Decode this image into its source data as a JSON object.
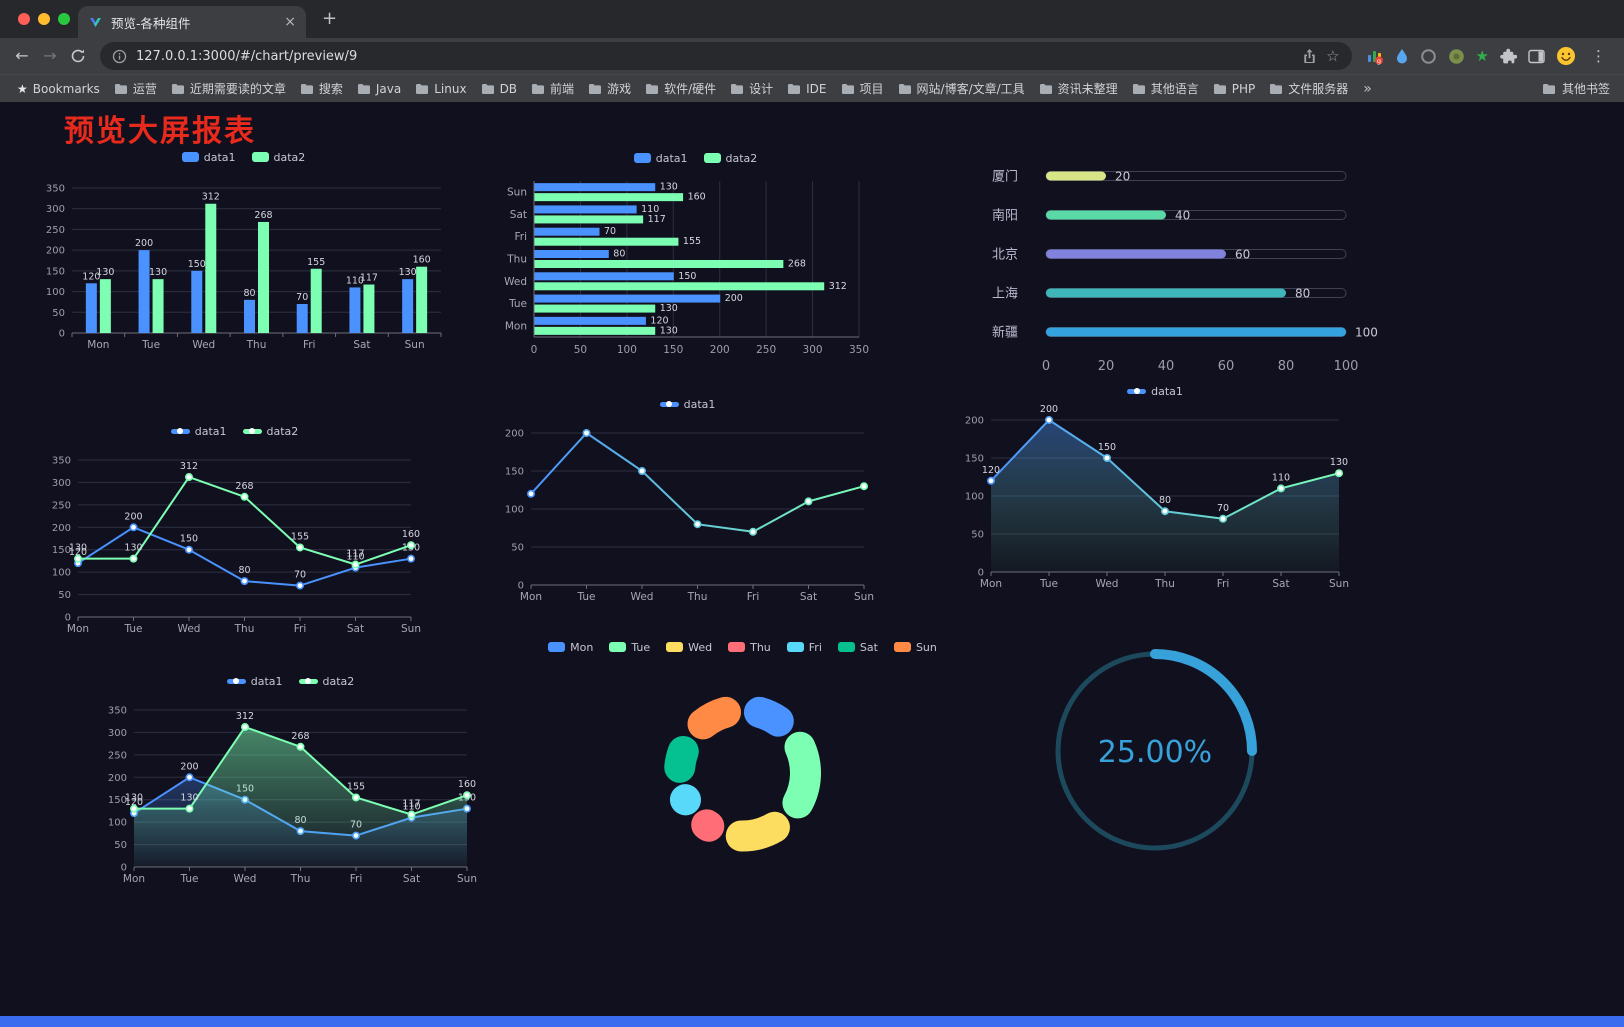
{
  "browser": {
    "tab": {
      "title": "预览-各种组件"
    },
    "url": "127.0.0.1:3000/#/chart/preview/9",
    "icons": {
      "back": "←",
      "forward": "→",
      "menu": "⋮",
      "star": "☆",
      "close": "×",
      "new_tab": "+",
      "overflow": "»",
      "bookmarks_star": "★"
    },
    "bookmarks": [
      "Bookmarks",
      "运营",
      "近期需要读的文章",
      "搜索",
      "Java",
      "Linux",
      "DB",
      "前端",
      "游戏",
      "软件/硬件",
      "设计",
      "IDE",
      "项目",
      "网站/博客/文章/工具",
      "资讯未整理",
      "其他语言",
      "PHP",
      "文件服务器"
    ],
    "other_bookmarks": "其他书签"
  },
  "page": {
    "title": "预览大屏报表",
    "title_color": "#e82a1d",
    "background": "#11101f",
    "footer_color": "#3a6cf0"
  },
  "chart_data": [
    {
      "id": "bar-grouped",
      "type": "bar",
      "legend_style": "rect",
      "categories": [
        "Mon",
        "Tue",
        "Wed",
        "Thu",
        "Fri",
        "Sat",
        "Sun"
      ],
      "series": [
        {
          "name": "data1",
          "color": "#4992ff",
          "values": [
            120,
            200,
            150,
            80,
            70,
            110,
            130
          ]
        },
        {
          "name": "data2",
          "color": "#7cffb2",
          "values": [
            130,
            130,
            312,
            268,
            155,
            117,
            160
          ]
        }
      ],
      "ylim": [
        0,
        350
      ],
      "ytick": 50,
      "show_labels": true
    },
    {
      "id": "bar-horizontal",
      "type": "hbar",
      "legend_style": "rect",
      "categories": [
        "Mon",
        "Tue",
        "Wed",
        "Thu",
        "Fri",
        "Sat",
        "Sun"
      ],
      "series": [
        {
          "name": "data1",
          "color": "#4992ff",
          "values": [
            120,
            200,
            150,
            80,
            70,
            110,
            130
          ]
        },
        {
          "name": "data2",
          "color": "#7cffb2",
          "values": [
            130,
            130,
            312,
            268,
            155,
            117,
            160
          ]
        }
      ],
      "xlim": [
        0,
        350
      ],
      "xtick": 50,
      "show_labels": true
    },
    {
      "id": "progress",
      "type": "progress",
      "rows": [
        {
          "label": "厦门",
          "value": 20,
          "color": "#d7e487"
        },
        {
          "label": "南阳",
          "value": 40,
          "color": "#5ad8a6"
        },
        {
          "label": "北京",
          "value": 60,
          "color": "#8082de"
        },
        {
          "label": "上海",
          "value": 80,
          "color": "#3fb6ba"
        },
        {
          "label": "新疆",
          "value": 100,
          "color": "#35a2e0"
        }
      ],
      "xlim": [
        0,
        100
      ],
      "xticks": [
        0,
        20,
        40,
        60,
        80,
        100
      ]
    },
    {
      "id": "line-two",
      "type": "line",
      "legend_style": "line",
      "categories": [
        "Mon",
        "Tue",
        "Wed",
        "Thu",
        "Fri",
        "Sat",
        "Sun"
      ],
      "series": [
        {
          "name": "data1",
          "color": "#4992ff",
          "values": [
            120,
            200,
            150,
            80,
            70,
            110,
            130
          ],
          "labels": true
        },
        {
          "name": "data2",
          "color": "#7cffb2",
          "values": [
            130,
            130,
            312,
            268,
            155,
            117,
            160
          ],
          "labels": true
        }
      ],
      "ylim": [
        0,
        350
      ],
      "ytick": 50
    },
    {
      "id": "line-gradient",
      "type": "line",
      "legend_style": "line",
      "categories": [
        "Mon",
        "Tue",
        "Wed",
        "Thu",
        "Fri",
        "Sat",
        "Sun"
      ],
      "series": [
        {
          "name": "data1",
          "color": "#4992ff",
          "color2": "#7cffb2",
          "values": [
            120,
            200,
            150,
            80,
            70,
            110,
            130
          ],
          "labels": false
        }
      ],
      "ylim": [
        0,
        200
      ],
      "ytick": 50
    },
    {
      "id": "line-area",
      "type": "line",
      "legend_style": "line",
      "categories": [
        "Mon",
        "Tue",
        "Wed",
        "Thu",
        "Fri",
        "Sat",
        "Sun"
      ],
      "series": [
        {
          "name": "data1",
          "color": "#4992ff",
          "color2": "#7cffb2",
          "values": [
            120,
            200,
            150,
            80,
            70,
            110,
            130
          ],
          "labels": true,
          "area": true,
          "area_opacity": 0.4
        }
      ],
      "ylim": [
        0,
        200
      ],
      "ytick": 50
    },
    {
      "id": "line-two-area",
      "type": "line",
      "legend_style": "line",
      "categories": [
        "Mon",
        "Tue",
        "Wed",
        "Thu",
        "Fri",
        "Sat",
        "Sun"
      ],
      "series": [
        {
          "name": "data1",
          "color": "#4992ff",
          "values": [
            120,
            200,
            150,
            80,
            70,
            110,
            130
          ],
          "labels": true,
          "area": true,
          "area_opacity": 0.3
        },
        {
          "name": "data2",
          "color": "#7cffb2",
          "values": [
            130,
            130,
            312,
            268,
            155,
            117,
            160
          ],
          "labels": true,
          "area": true,
          "area_opacity": 0.5
        }
      ],
      "ylim": [
        0,
        350
      ],
      "ytick": 50
    },
    {
      "id": "donut",
      "type": "donut",
      "items": [
        {
          "label": "Mon",
          "value": 120,
          "color": "#4992ff"
        },
        {
          "label": "Tue",
          "value": 200,
          "color": "#7cffb2"
        },
        {
          "label": "Wed",
          "value": 150,
          "color": "#fddd60"
        },
        {
          "label": "Thu",
          "value": 80,
          "color": "#ff6e76"
        },
        {
          "label": "Fri",
          "value": 70,
          "color": "#58d9f9"
        },
        {
          "label": "Sat",
          "value": 110,
          "color": "#05c091"
        },
        {
          "label": "Sun",
          "value": 130,
          "color": "#ff8a45"
        }
      ]
    },
    {
      "id": "gauge",
      "type": "gauge",
      "value": 25,
      "max": 100,
      "display": "25.00%",
      "color": "#37a2da",
      "track_color": "#1c4a5c"
    }
  ]
}
